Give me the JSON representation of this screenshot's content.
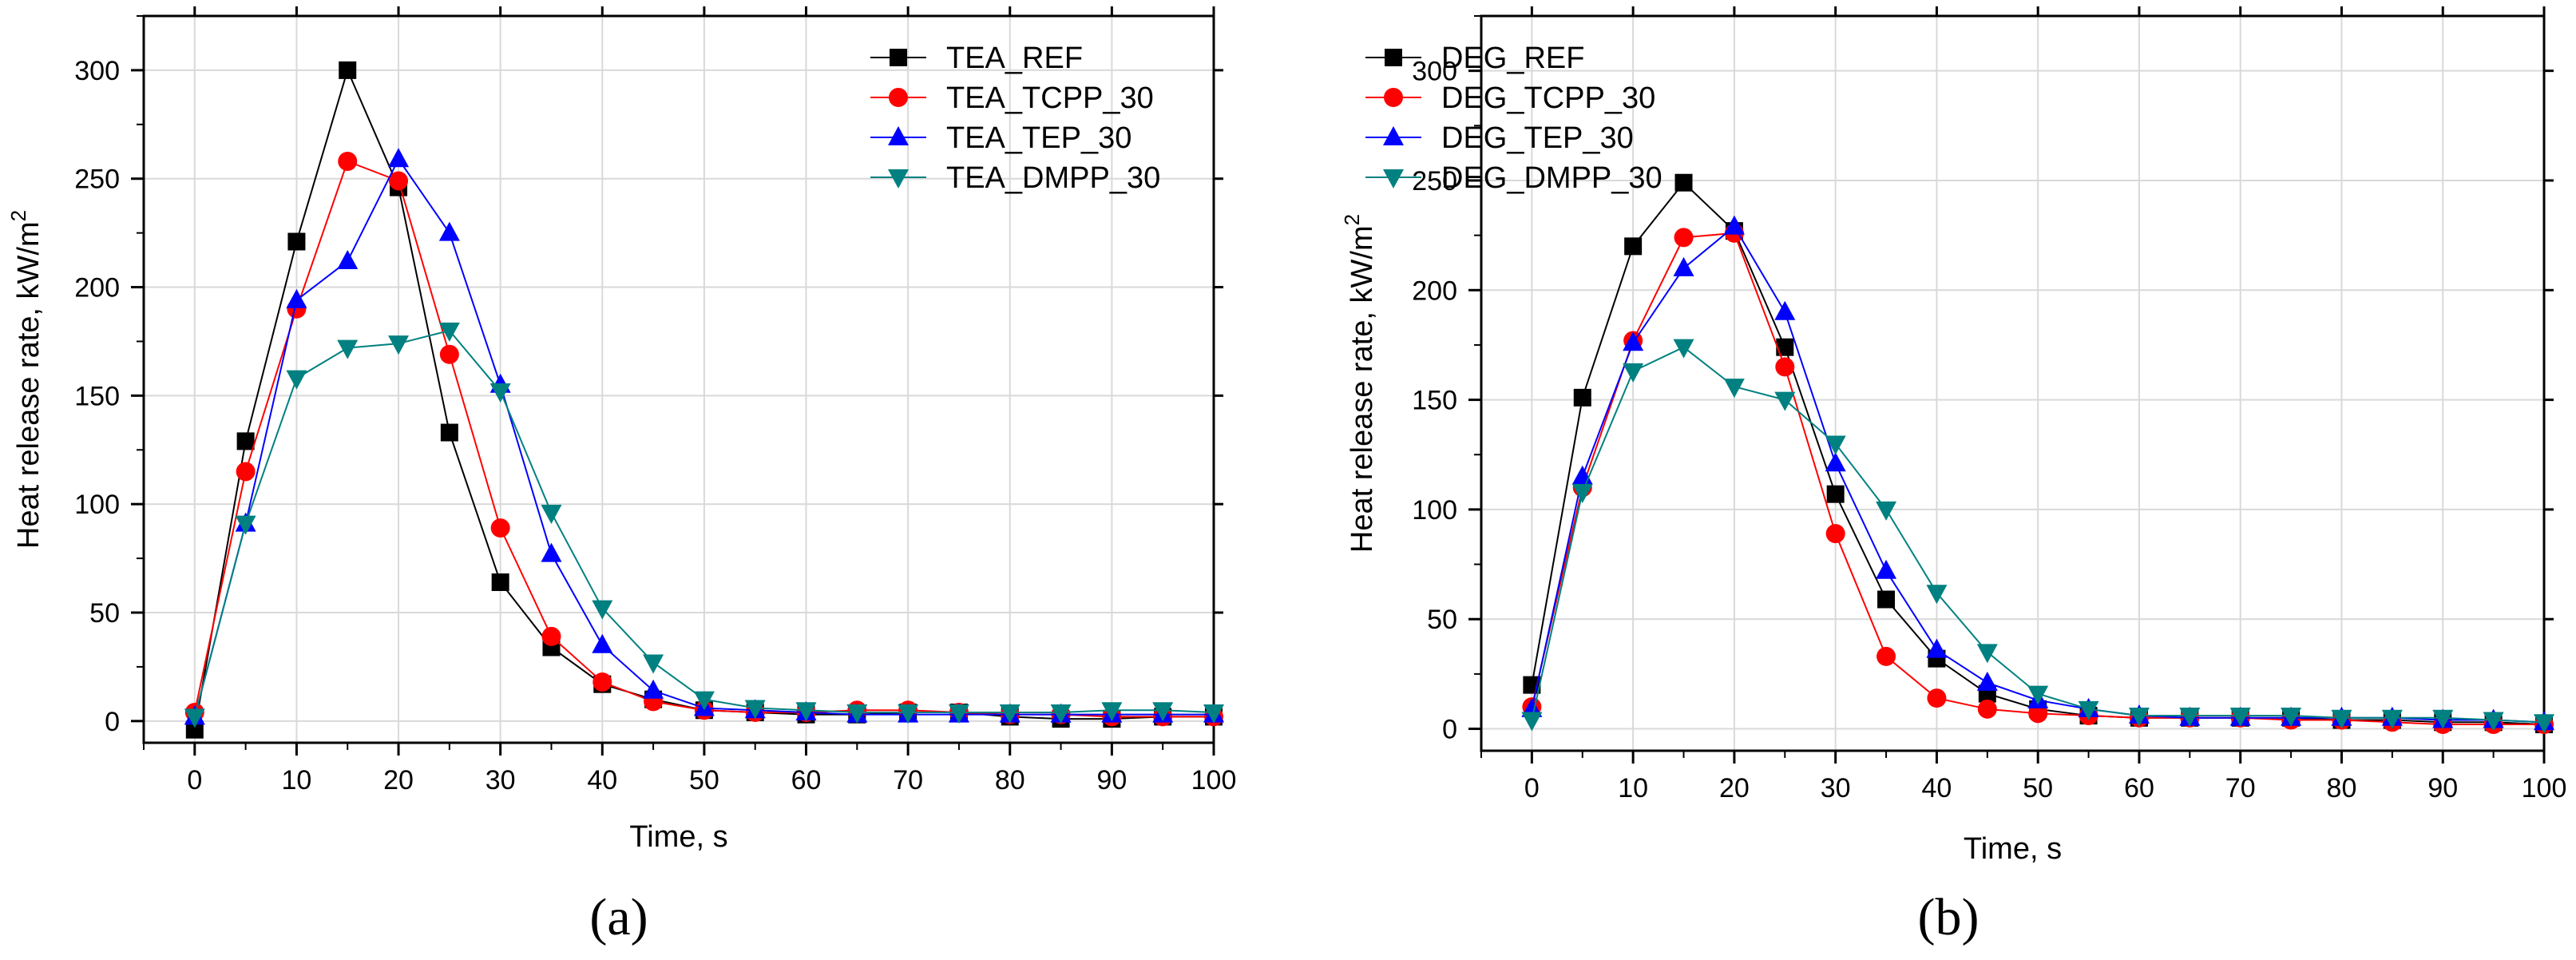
{
  "chart_data": [
    {
      "type": "line",
      "caption": "(a)",
      "xlabel": "Time, s",
      "ylabel": "Heat release rate, kW/m",
      "ylabel_sup": "2",
      "xlim": [
        -5,
        100
      ],
      "ylim": [
        -10,
        325
      ],
      "xticks": [
        0,
        10,
        20,
        30,
        40,
        50,
        60,
        70,
        80,
        90,
        100
      ],
      "yticks": [
        0,
        50,
        100,
        150,
        200,
        250,
        300
      ],
      "grid": true,
      "legend_position": "top-right",
      "x": [
        0,
        5,
        10,
        15,
        20,
        25,
        30,
        35,
        40,
        45,
        50,
        55,
        60,
        65,
        70,
        75,
        80,
        85,
        90,
        95,
        100
      ],
      "series": [
        {
          "name": "TEA_REF",
          "color": "#000000",
          "marker": "square",
          "values": [
            -4,
            129,
            221,
            300,
            246,
            133,
            64,
            34,
            17,
            10,
            5,
            4,
            3,
            3,
            4,
            4,
            2,
            1,
            1,
            2,
            2
          ]
        },
        {
          "name": "TEA_TCPP_30",
          "color": "#ff0000",
          "marker": "circle",
          "values": [
            4,
            115,
            190,
            258,
            249,
            169,
            89,
            39,
            18,
            9,
            5,
            4,
            4,
            5,
            5,
            4,
            3,
            3,
            2,
            2,
            2
          ]
        },
        {
          "name": "TEA_TEP_30",
          "color": "#0000ff",
          "marker": "triangle-up",
          "values": [
            2,
            91,
            194,
            212,
            259,
            225,
            155,
            77,
            35,
            14,
            6,
            5,
            4,
            3,
            3,
            3,
            3,
            3,
            3,
            3,
            3
          ]
        },
        {
          "name": "TEA_DMPP_30",
          "color": "#008080",
          "marker": "triangle-down",
          "values": [
            2,
            91,
            158,
            172,
            174,
            180,
            152,
            96,
            52,
            27,
            10,
            6,
            5,
            4,
            4,
            4,
            4,
            4,
            5,
            5,
            4
          ]
        }
      ]
    },
    {
      "type": "line",
      "caption": "(b)",
      "xlabel": "Time, s",
      "ylabel": "Heat release rate, kW/m",
      "ylabel_sup": "2",
      "xlim": [
        -5,
        100
      ],
      "ylim": [
        -10,
        325
      ],
      "xticks": [
        0,
        10,
        20,
        30,
        40,
        50,
        60,
        70,
        80,
        90,
        100
      ],
      "yticks": [
        0,
        50,
        100,
        150,
        200,
        250,
        300
      ],
      "grid": true,
      "legend_position": "top-right",
      "x": [
        0,
        5,
        10,
        15,
        20,
        25,
        30,
        35,
        40,
        45,
        50,
        55,
        60,
        65,
        70,
        75,
        80,
        85,
        90,
        95,
        100
      ],
      "series": [
        {
          "name": "DEG_REF",
          "color": "#000000",
          "marker": "square",
          "values": [
            20,
            151,
            220,
            249,
            227,
            174,
            107,
            59,
            32,
            16,
            9,
            6,
            5,
            5,
            5,
            5,
            4,
            4,
            3,
            3,
            2
          ]
        },
        {
          "name": "DEG_TCPP_30",
          "color": "#ff0000",
          "marker": "circle",
          "values": [
            10,
            110,
            177,
            224,
            226,
            165,
            89,
            33,
            14,
            9,
            7,
            6,
            5,
            5,
            5,
            4,
            4,
            3,
            2,
            2,
            2
          ]
        },
        {
          "name": "DEG_TEP_30",
          "color": "#0000ff",
          "marker": "triangle-up",
          "values": [
            9,
            115,
            176,
            210,
            229,
            190,
            121,
            72,
            36,
            21,
            13,
            9,
            6,
            5,
            5,
            5,
            5,
            5,
            4,
            4,
            3
          ]
        },
        {
          "name": "DEG_DMPP_30",
          "color": "#008080",
          "marker": "triangle-down",
          "values": [
            4,
            108,
            163,
            174,
            156,
            150,
            130,
            100,
            62,
            35,
            16,
            9,
            6,
            6,
            6,
            6,
            5,
            5,
            5,
            4,
            3
          ]
        }
      ]
    }
  ]
}
